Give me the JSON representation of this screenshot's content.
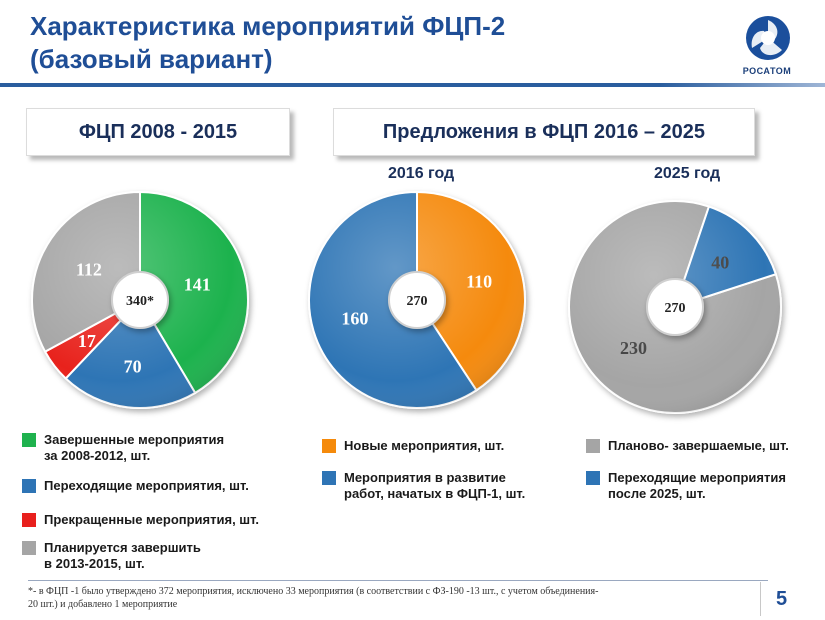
{
  "slide": {
    "title_line1": "Характеристика мероприятий ФЦП-2",
    "title_line2": "(базовый вариант)",
    "logo_text": "РОСАТОМ",
    "page_number": "5"
  },
  "sections": {
    "left": "ФЦП 2008 - 2015",
    "right": "Предложения в ФЦП 2016 – 2025"
  },
  "years": {
    "y2016": "2016 год",
    "y2025": "2025 год"
  },
  "colors": {
    "green": "#1fb24e",
    "blue": "#2e74b5",
    "red": "#e8201d",
    "gray": "#a5a5a5",
    "orange": "#f58a0b"
  },
  "chart_data": [
    {
      "type": "pie",
      "title": "ФЦП 2008 - 2015",
      "center_label": "340*",
      "slices": [
        {
          "label": "Завершенные мероприятия за 2008-2012, шт.",
          "value": 141,
          "color": "#1fb24e"
        },
        {
          "label": "Переходящие мероприятия, шт.",
          "value": 70,
          "color": "#2e74b5"
        },
        {
          "label": "Прекращенные мероприятия, шт.",
          "value": 17,
          "color": "#e8201d"
        },
        {
          "label": "Планируется завершить в 2013-2015, шт.",
          "value": 112,
          "color": "#a5a5a5"
        }
      ]
    },
    {
      "type": "pie",
      "title": "2016 год",
      "center_label": "270",
      "slices": [
        {
          "label": "Новые мероприятия, шт.",
          "value": 110,
          "color": "#f58a0b"
        },
        {
          "label": "Мероприятия в развитие работ, начатых в ФЦП-1, шт.",
          "value": 160,
          "color": "#2e74b5"
        }
      ]
    },
    {
      "type": "pie",
      "title": "2025 год",
      "center_label": "270",
      "slices": [
        {
          "label": "Планово- завершаемые, шт.",
          "value": 230,
          "color": "#a5a5a5"
        },
        {
          "label": "Переходящие мероприятия после 2025, шт.",
          "value": 40,
          "color": "#2e74b5"
        }
      ]
    }
  ],
  "legend": {
    "left": [
      {
        "line1": "Завершенные мероприятия",
        "line2": "за 2008-2012, шт.",
        "color": "#1fb24e"
      },
      {
        "line1": "Переходящие мероприятия, шт.",
        "line2": "",
        "color": "#2e74b5"
      },
      {
        "line1": "Прекращенные мероприятия, шт.",
        "line2": "",
        "color": "#e8201d"
      },
      {
        "line1": "Планируется завершить",
        "line2": "в 2013-2015, шт.",
        "color": "#a5a5a5"
      }
    ],
    "middle": [
      {
        "line1": "Новые мероприятия, шт.",
        "line2": "",
        "color": "#f58a0b"
      },
      {
        "line1": "Мероприятия в развитие",
        "line2": "работ, начатых в ФЦП-1, шт.",
        "color": "#2e74b5"
      }
    ],
    "right": [
      {
        "line1": "Планово- завершаемые, шт.",
        "line2": "",
        "color": "#a5a5a5"
      },
      {
        "line1": "Переходящие мероприятия",
        "line2": "после 2025, шт.",
        "color": "#2e74b5"
      }
    ]
  },
  "footnote": {
    "line1": "*-  в ФЦП -1 было  утверждено 372 мероприятия,  исключено 33 мероприятия  (в соответствии с ФЗ-190 -13 шт., с учетом объединения-",
    "line2": "20 шт.) и добавлено 1 мероприятие"
  }
}
